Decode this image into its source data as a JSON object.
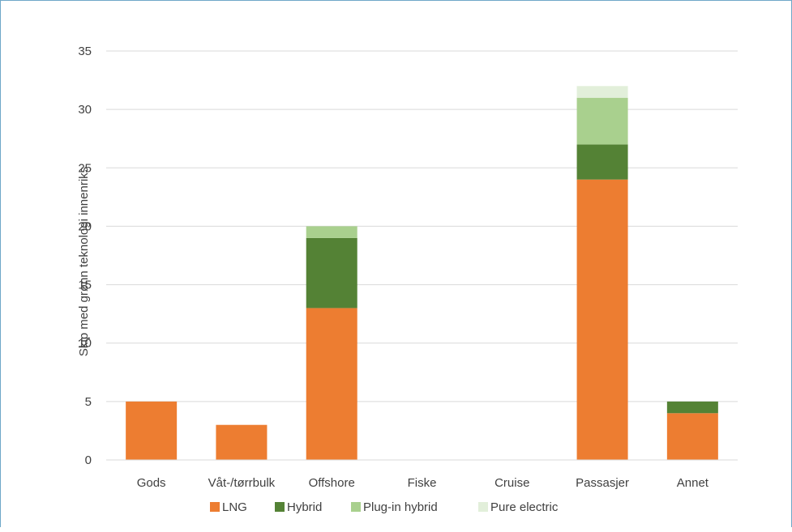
{
  "chart_data": {
    "type": "bar",
    "stacked": true,
    "ylabel": "Skip med grønn teknologi innenriks",
    "xlabel": "",
    "ylim": [
      0,
      35
    ],
    "yticks": [
      0,
      5,
      10,
      15,
      20,
      25,
      30,
      35
    ],
    "grid": true,
    "legend_position": "bottom",
    "categories": [
      "Gods",
      "Våt-/tørrbulk",
      "Offshore",
      "Fiske",
      "Cruise",
      "Passasjer",
      "Annet"
    ],
    "series": [
      {
        "name": "LNG",
        "color": "#ed7d31",
        "values": [
          5,
          3,
          13,
          0,
          0,
          24,
          4
        ]
      },
      {
        "name": "Hybrid",
        "color": "#548235",
        "values": [
          0,
          0,
          6,
          0,
          0,
          3,
          1
        ]
      },
      {
        "name": "Plug-in hybrid",
        "color": "#a9d08e",
        "values": [
          0,
          0,
          1,
          0,
          0,
          4,
          0
        ]
      },
      {
        "name": "Pure electric",
        "color": "#e2efda",
        "values": [
          0,
          0,
          0,
          0,
          0,
          1,
          0
        ]
      }
    ]
  }
}
